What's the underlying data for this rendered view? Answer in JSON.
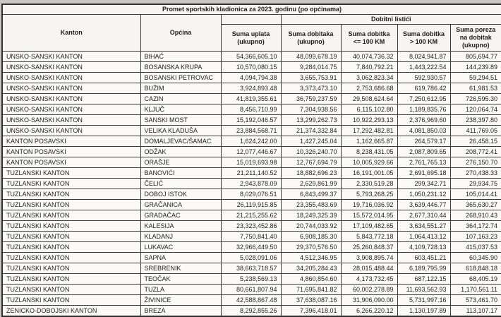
{
  "title": "Promet sportskih kladionica za 2023. godinu (po općinama)",
  "header": {
    "kanton": "Kanton",
    "opcina": "Općina",
    "group_dobitni": "Dobitni listići",
    "uplata": "Suma uplata (ukupno)",
    "dobitaka": "Suma dobitaka (ukupno)",
    "dobitak_do_100": "Suma dobitka <= 100 KM",
    "dobitak_preko_100": "Suma dobitka > 100 KM",
    "poreza": "Suma poreza na dobitak (ukupno)"
  },
  "colors": {
    "paper": "#fbfaf8",
    "page_edge": "#c9c7c3",
    "border": "#3d3d3d",
    "header_fill": "#f6f5f2",
    "text": "#1c1c1c"
  },
  "rows": [
    {
      "kanton": "UNSKO-SANSKI KANTON",
      "opcina": "BIHAĆ",
      "uplata": "54,366,605.10",
      "dobitaka": "48,099,678.19",
      "dobitak_do_100": "40,074,736.32",
      "dobitak_preko_100": "8,024,941.87",
      "poreza": "805,694.77"
    },
    {
      "kanton": "UNSKO-SANSKI KANTON",
      "opcina": "BOSANSKA KRUPA",
      "uplata": "10,570,080.15",
      "dobitaka": "9,284,014.75",
      "dobitak_do_100": "7,840,792.21",
      "dobitak_preko_100": "1,443,222.54",
      "poreza": "144,239.89"
    },
    {
      "kanton": "UNSKO-SANSKI KANTON",
      "opcina": "BOSANSKI PETROVAC",
      "uplata": "4,094,794.38",
      "dobitaka": "3,655,753.91",
      "dobitak_do_100": "3,062,823.34",
      "dobitak_preko_100": "592,930.57",
      "poreza": "59,294.51"
    },
    {
      "kanton": "UNSKO-SANSKI KANTON",
      "opcina": "BUŽIM",
      "uplata": "3,924,893.48",
      "dobitaka": "3,373,473.10",
      "dobitak_do_100": "2,753,686.68",
      "dobitak_preko_100": "619,786.42",
      "poreza": "61,981.53"
    },
    {
      "kanton": "UNSKO-SANSKI KANTON",
      "opcina": "CAZIN",
      "uplata": "41,819,355.61",
      "dobitaka": "36,759,237.59",
      "dobitak_do_100": "29,508,624.64",
      "dobitak_preko_100": "7,250,612.95",
      "poreza": "726,595.30"
    },
    {
      "kanton": "UNSKO-SANSKI KANTON",
      "opcina": "KLJUČ",
      "uplata": "8,456,710.99",
      "dobitaka": "7,304,938.56",
      "dobitak_do_100": "6,115,102.80",
      "dobitak_preko_100": "1,189,835.76",
      "poreza": "120,064.74"
    },
    {
      "kanton": "UNSKO-SANSKI KANTON",
      "opcina": "SANSKI MOST",
      "uplata": "15,192,046.57",
      "dobitaka": "13,299,262.73",
      "dobitak_do_100": "10,922,293.13",
      "dobitak_preko_100": "2,376,969.60",
      "poreza": "238,397.80"
    },
    {
      "kanton": "UNSKO-SANSKI KANTON",
      "opcina": "VELIKA KLADUŠA",
      "uplata": "23,884,568.71",
      "dobitaka": "21,374,332.84",
      "dobitak_do_100": "17,292,482.81",
      "dobitak_preko_100": "4,081,850.03",
      "poreza": "411,769.05"
    },
    {
      "kanton": "KANTON POSAVSKI",
      "opcina": "DOMALJEVAC/ŠAMAC",
      "uplata": "1,624,242.00",
      "dobitaka": "1,427,245.04",
      "dobitak_do_100": "1,162,665.87",
      "dobitak_preko_100": "264,579.17",
      "poreza": "26,458.15"
    },
    {
      "kanton": "KANTON POSAVSKI",
      "opcina": "ODŽAK",
      "uplata": "12,077,446.67",
      "dobitaka": "10,326,240.70",
      "dobitak_do_100": "8,238,431.05",
      "dobitak_preko_100": "2,087,809.65",
      "poreza": "208,772.41"
    },
    {
      "kanton": "KANTON POSAVSKI",
      "opcina": "ORAŠJE",
      "uplata": "15,019,693.98",
      "dobitaka": "12,767,694.79",
      "dobitak_do_100": "10,005,929.66",
      "dobitak_preko_100": "2,761,765.13",
      "poreza": "276,150.70"
    },
    {
      "kanton": "TUZLANSKI KANTON",
      "opcina": "BANOVIĆI",
      "uplata": "21,211,140.52",
      "dobitaka": "18,882,696.23",
      "dobitak_do_100": "16,191,001.05",
      "dobitak_preko_100": "2,691,695.18",
      "poreza": "270,438.33"
    },
    {
      "kanton": "TUZLANSKI KANTON",
      "opcina": "ČELIĆ",
      "uplata": "2,943,878.09",
      "dobitaka": "2,629,861.99",
      "dobitak_do_100": "2,330,519.28",
      "dobitak_preko_100": "299,342.71",
      "poreza": "29,934.75"
    },
    {
      "kanton": "TUZLANSKI KANTON",
      "opcina": "DOBOJ ISTOK",
      "uplata": "8,029,076.51",
      "dobitaka": "6,843,499.37",
      "dobitak_do_100": "5,793,268.25",
      "dobitak_preko_100": "1,050,231.12",
      "poreza": "105,014.41"
    },
    {
      "kanton": "TUZLANSKI KANTON",
      "opcina": "GRAČANICA",
      "uplata": "26,119,915.85",
      "dobitaka": "23,355,483.69",
      "dobitak_do_100": "19,716,036.92",
      "dobitak_preko_100": "3,639,446.77",
      "poreza": "365,630.27"
    },
    {
      "kanton": "TUZLANSKI KANTON",
      "opcina": "GRADAČAC",
      "uplata": "21,215,255.62",
      "dobitaka": "18,249,325.39",
      "dobitak_do_100": "15,572,014.95",
      "dobitak_preko_100": "2,677,310.44",
      "poreza": "268,910.43"
    },
    {
      "kanton": "TUZLANSKI KANTON",
      "opcina": "KALESIJA",
      "uplata": "23,323,452.86",
      "dobitaka": "20,744,033.92",
      "dobitak_do_100": "17,109,482.65",
      "dobitak_preko_100": "3,634,551.27",
      "poreza": "364,172.74"
    },
    {
      "kanton": "TUZLANSKI KANTON",
      "opcina": "KLADANJ",
      "uplata": "7,750,841.40",
      "dobitaka": "6,908,185.30",
      "dobitak_do_100": "5,843,772.18",
      "dobitak_preko_100": "1,064,413.12",
      "poreza": "107,163.23"
    },
    {
      "kanton": "TUZLANSKI KANTON",
      "opcina": "LUKAVAC",
      "uplata": "32,966,449.50",
      "dobitaka": "29,370,576.50",
      "dobitak_do_100": "25,260,848.37",
      "dobitak_preko_100": "4,109,728.13",
      "poreza": "415,037.53"
    },
    {
      "kanton": "TUZLANSKI KANTON",
      "opcina": "SAPNA",
      "uplata": "5,028,091.06",
      "dobitaka": "4,512,346.95",
      "dobitak_do_100": "3,908,895.74",
      "dobitak_preko_100": "603,451.21",
      "poreza": "60,345.90"
    },
    {
      "kanton": "TUZLANSKI KANTON",
      "opcina": "SREBRENIK",
      "uplata": "38,663,718.57",
      "dobitaka": "34,205,284.43",
      "dobitak_do_100": "28,015,488.44",
      "dobitak_preko_100": "6,189,795.99",
      "poreza": "618,848.18"
    },
    {
      "kanton": "TUZLANSKI KANTON",
      "opcina": "TEOČAK",
      "uplata": "5,238,569.13",
      "dobitaka": "4,860,854.60",
      "dobitak_do_100": "4,173,732.45",
      "dobitak_preko_100": "687,122.15",
      "poreza": "68,405.19"
    },
    {
      "kanton": "TUZLANSKI KANTON",
      "opcina": "TUZLA",
      "uplata": "80,661,807.94",
      "dobitaka": "71,695,841.82",
      "dobitak_do_100": "60,002,278.89",
      "dobitak_preko_100": "11,693,562.93",
      "poreza": "1,170,561.11"
    },
    {
      "kanton": "TUZLANSKI KANTON",
      "opcina": "ŽIVINICE",
      "uplata": "42,588,867.48",
      "dobitaka": "37,638,087.16",
      "dobitak_do_100": "31,906,090.00",
      "dobitak_preko_100": "5,731,997.16",
      "poreza": "573,461.70"
    },
    {
      "kanton": "ZENICKO-DOBOJSKI KANTON",
      "opcina": "BREZA",
      "uplata": "8,292,855.26",
      "dobitaka": "7,396,418.01",
      "dobitak_do_100": "6,266,220.12",
      "dobitak_preko_100": "1,130,197.89",
      "poreza": "113,107.17"
    }
  ]
}
